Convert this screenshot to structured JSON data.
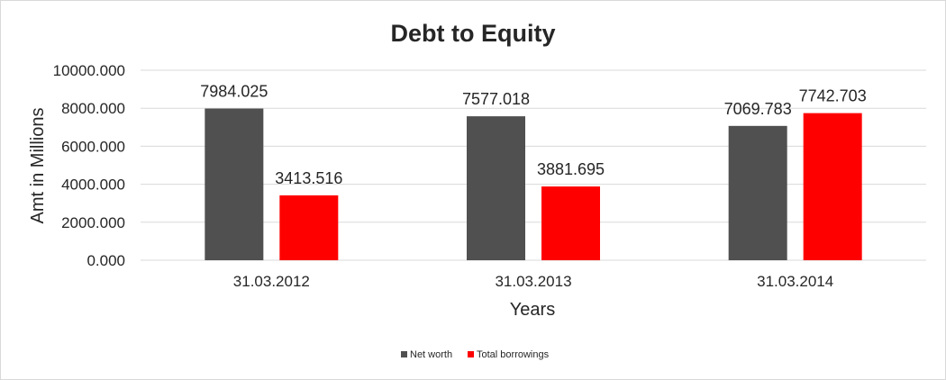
{
  "chart_data": {
    "type": "bar",
    "title": "Debt to Equity",
    "xlabel": "Years",
    "ylabel": "Amt in Millions",
    "categories": [
      "31.03.2012",
      "31.03.2013",
      "31.03.2014"
    ],
    "series": [
      {
        "name": "Net worth",
        "values": [
          7984.025,
          7577.018,
          7069.783
        ],
        "color": "#505050"
      },
      {
        "name": "Total borrowings",
        "values": [
          3413.516,
          3881.695,
          7742.703
        ],
        "color": "#ff0000"
      }
    ],
    "ylim": [
      0,
      10000
    ],
    "yticks": [
      "0.000",
      "2000.000",
      "4000.000",
      "6000.000",
      "8000.000",
      "10000.000"
    ],
    "data_labels": [
      [
        "7984.025",
        "7577.018",
        "7069.783"
      ],
      [
        "3413.516",
        "3881.695",
        "7742.703"
      ]
    ],
    "grid": true,
    "legend_position": "bottom"
  }
}
